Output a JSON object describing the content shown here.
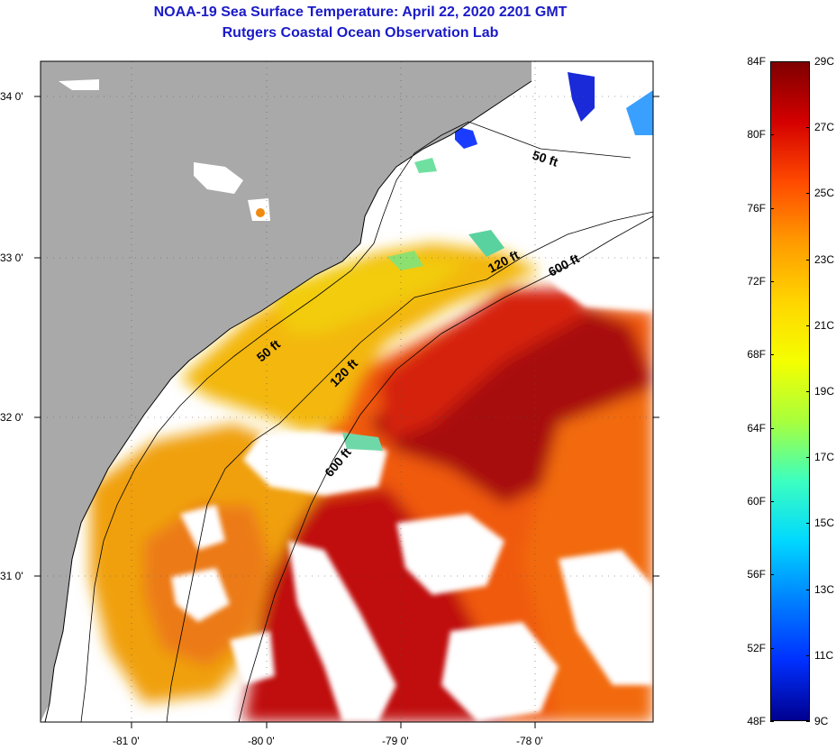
{
  "header": {
    "title": "NOAA-19 Sea Surface Temperature:  April 22, 2020 2201 GMT",
    "subtitle": "Rutgers Coastal Ocean Observation Lab"
  },
  "map": {
    "lon_labels": [
      "-81 0'",
      "-80 0'",
      "-79 0'",
      "-78 0'"
    ],
    "lat_labels": [
      "34 0'",
      "33 0'",
      "32 0'",
      "31 0'"
    ],
    "contour_labels": [
      "50 ft",
      "120 ft",
      "600 ft",
      "50 ft",
      "120 ft",
      "600 ft"
    ],
    "colors": {
      "land": "#a9a9a9",
      "cloud": "#ffffff",
      "coast": "#000000"
    }
  },
  "legend": {
    "fahrenheit": [
      "84F",
      "80F",
      "76F",
      "72F",
      "68F",
      "64F",
      "60F",
      "56F",
      "52F",
      "48F"
    ],
    "celsius": [
      "29C",
      "27C",
      "25C",
      "23C",
      "21C",
      "19C",
      "17C",
      "15C",
      "13C",
      "11C",
      "9C"
    ],
    "gradient_stops": [
      "#7f0000",
      "#d40000",
      "#ff4a00",
      "#ff9a00",
      "#ffd500",
      "#f5ff00",
      "#a8ff3c",
      "#3cffc0",
      "#00d8ff",
      "#0080ff",
      "#0030ff",
      "#00008f"
    ]
  }
}
